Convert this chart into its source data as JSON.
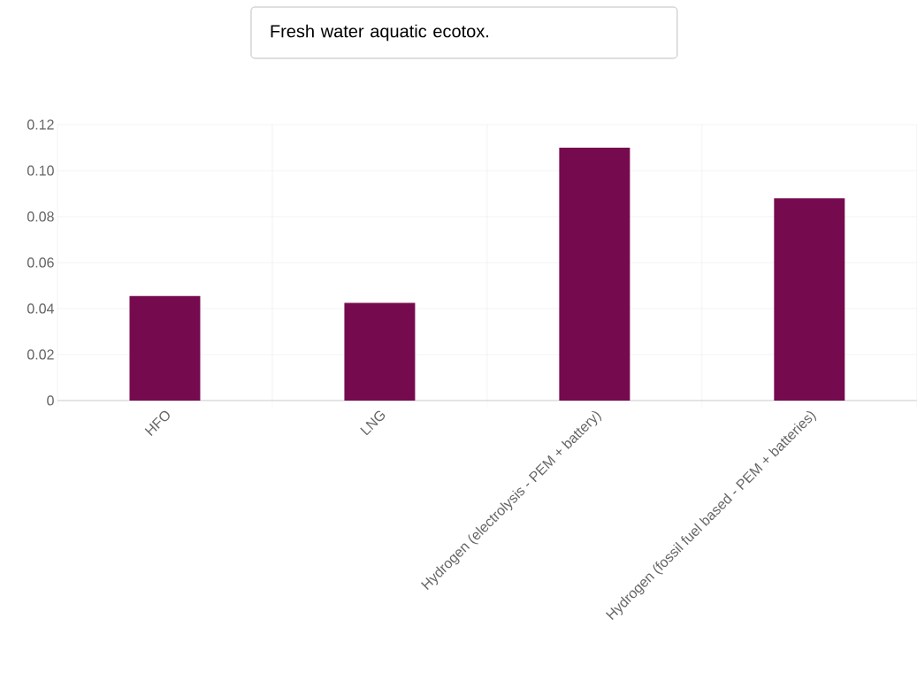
{
  "chart_data": {
    "type": "bar",
    "title": "Fresh water aquatic ecotox.",
    "categories": [
      "HFO",
      "LNG",
      "Hydrogen (electrolysis - PEM + battery)",
      "Hydrogen (fossil fuel based - PEM + batteries)"
    ],
    "values": [
      0.0455,
      0.0425,
      0.11,
      0.088
    ],
    "color": "#760a4e",
    "ylim": [
      0,
      0.12
    ],
    "yticks": [
      {
        "value": 0,
        "label": "0"
      },
      {
        "value": 0.02,
        "label": "0.02"
      },
      {
        "value": 0.04,
        "label": "0.04"
      },
      {
        "value": 0.06,
        "label": "0.06"
      },
      {
        "value": 0.08,
        "label": "0.08"
      },
      {
        "value": 0.1,
        "label": "0.10"
      },
      {
        "value": 0.12,
        "label": "0.12"
      }
    ],
    "grid": true
  }
}
